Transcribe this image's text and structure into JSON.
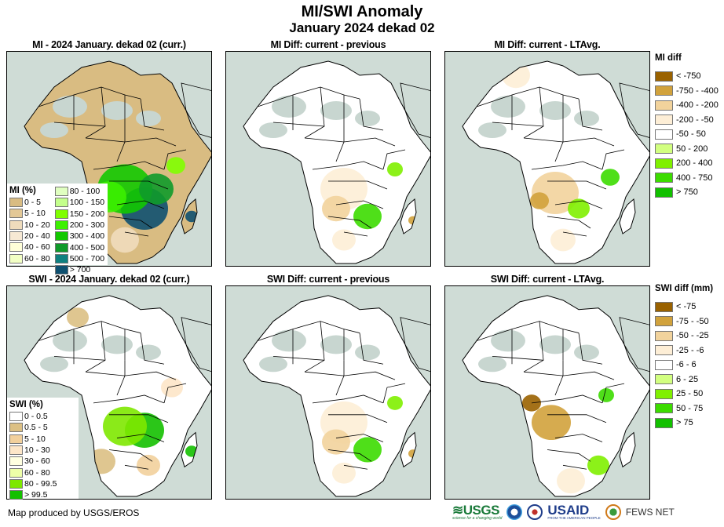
{
  "header": {
    "title": "MI/SWI Anomaly",
    "subtitle": "January 2024 dekad 02"
  },
  "panels": [
    {
      "title": "MI - 2024 January. dekad 02 (curr.)",
      "variable": "MI",
      "kind": "current"
    },
    {
      "title": "MI Diff: current - previous",
      "variable": "MI",
      "kind": "diff-previous"
    },
    {
      "title": "MI Diff: current - LTAvg.",
      "variable": "MI",
      "kind": "diff-ltavg"
    },
    {
      "title": "SWI - 2024 January. dekad 02 (curr.)",
      "variable": "SWI",
      "kind": "current"
    },
    {
      "title": "SWI Diff: current - previous",
      "variable": "SWI",
      "kind": "diff-previous"
    },
    {
      "title": "SWI Diff: current - LTAvg.",
      "variable": "SWI",
      "kind": "diff-ltavg"
    }
  ],
  "legends": {
    "mi_current": {
      "title": "MI (%)",
      "items": [
        {
          "label": "0 - 5",
          "color": "#d9bc82"
        },
        {
          "label": "5 - 10",
          "color": "#e3c896"
        },
        {
          "label": "10 - 20",
          "color": "#efdcbc"
        },
        {
          "label": "20 - 40",
          "color": "#f7e9d4"
        },
        {
          "label": "40 - 60",
          "color": "#ffffd8"
        },
        {
          "label": "60 - 80",
          "color": "#f2ffc4"
        },
        {
          "label": "80 - 100",
          "color": "#e0ffc0"
        },
        {
          "label": "100 - 150",
          "color": "#c4ff8c"
        },
        {
          "label": "150 - 200",
          "color": "#80ff00"
        },
        {
          "label": "200 - 300",
          "color": "#3cf000"
        },
        {
          "label": "300 - 400",
          "color": "#12c800"
        },
        {
          "label": "400 - 500",
          "color": "#109a2a"
        },
        {
          "label": "500 - 700",
          "color": "#0f8080"
        },
        {
          "label": "> 700",
          "color": "#0e5070"
        }
      ]
    },
    "mi_diff": {
      "title": "MI diff",
      "items": [
        {
          "label": "< -750",
          "color": "#9a6200"
        },
        {
          "label": "-750 - -400",
          "color": "#d1a23c"
        },
        {
          "label": "-400 - -200",
          "color": "#f2d39c"
        },
        {
          "label": "-200 - -50",
          "color": "#fdeed6"
        },
        {
          "label": "-50 - 50",
          "color": "#ffffff"
        },
        {
          "label": "50 - 200",
          "color": "#d2ff80"
        },
        {
          "label": "200 - 400",
          "color": "#80f000"
        },
        {
          "label": "400 - 750",
          "color": "#3cdc00"
        },
        {
          "label": "> 750",
          "color": "#12c000"
        }
      ]
    },
    "swi_current": {
      "title": "SWI (%)",
      "items": [
        {
          "label": "0 - 0.5",
          "color": "#ffffff"
        },
        {
          "label": "0.5 - 5",
          "color": "#dcc084"
        },
        {
          "label": "5 - 10",
          "color": "#f2d09c"
        },
        {
          "label": "10 - 30",
          "color": "#fde6c8"
        },
        {
          "label": "30 - 60",
          "color": "#ffffe0"
        },
        {
          "label": "60 - 80",
          "color": "#eeffa8"
        },
        {
          "label": "80 - 99.5",
          "color": "#7ee800"
        },
        {
          "label": "> 99.5",
          "color": "#14c000"
        }
      ]
    },
    "swi_diff": {
      "title": "SWI diff (mm)",
      "items": [
        {
          "label": "< -75",
          "color": "#9a6200"
        },
        {
          "label": "-75 - -50",
          "color": "#d1a23c"
        },
        {
          "label": "-50 - -25",
          "color": "#f2d39c"
        },
        {
          "label": "-25 - -6",
          "color": "#fdeed6"
        },
        {
          "label": "-6 - 6",
          "color": "#ffffff"
        },
        {
          "label": "6 - 25",
          "color": "#d2ff80"
        },
        {
          "label": "25 - 50",
          "color": "#80f000"
        },
        {
          "label": "50 - 75",
          "color": "#3cdc00"
        },
        {
          "label": "> 75",
          "color": "#12c000"
        }
      ]
    }
  },
  "footer": {
    "credit": "Map produced by USGS/EROS",
    "logos": [
      "USGS",
      "NOAA",
      "USAID",
      "FEWS NET"
    ],
    "usgs_tagline": "science for a changing world",
    "usaid_tagline": "FROM THE AMERICAN PEOPLE"
  },
  "colors": {
    "ocean": "#cfdcd6",
    "desert_sparse": "#cfdcd6",
    "border": "#000000"
  }
}
